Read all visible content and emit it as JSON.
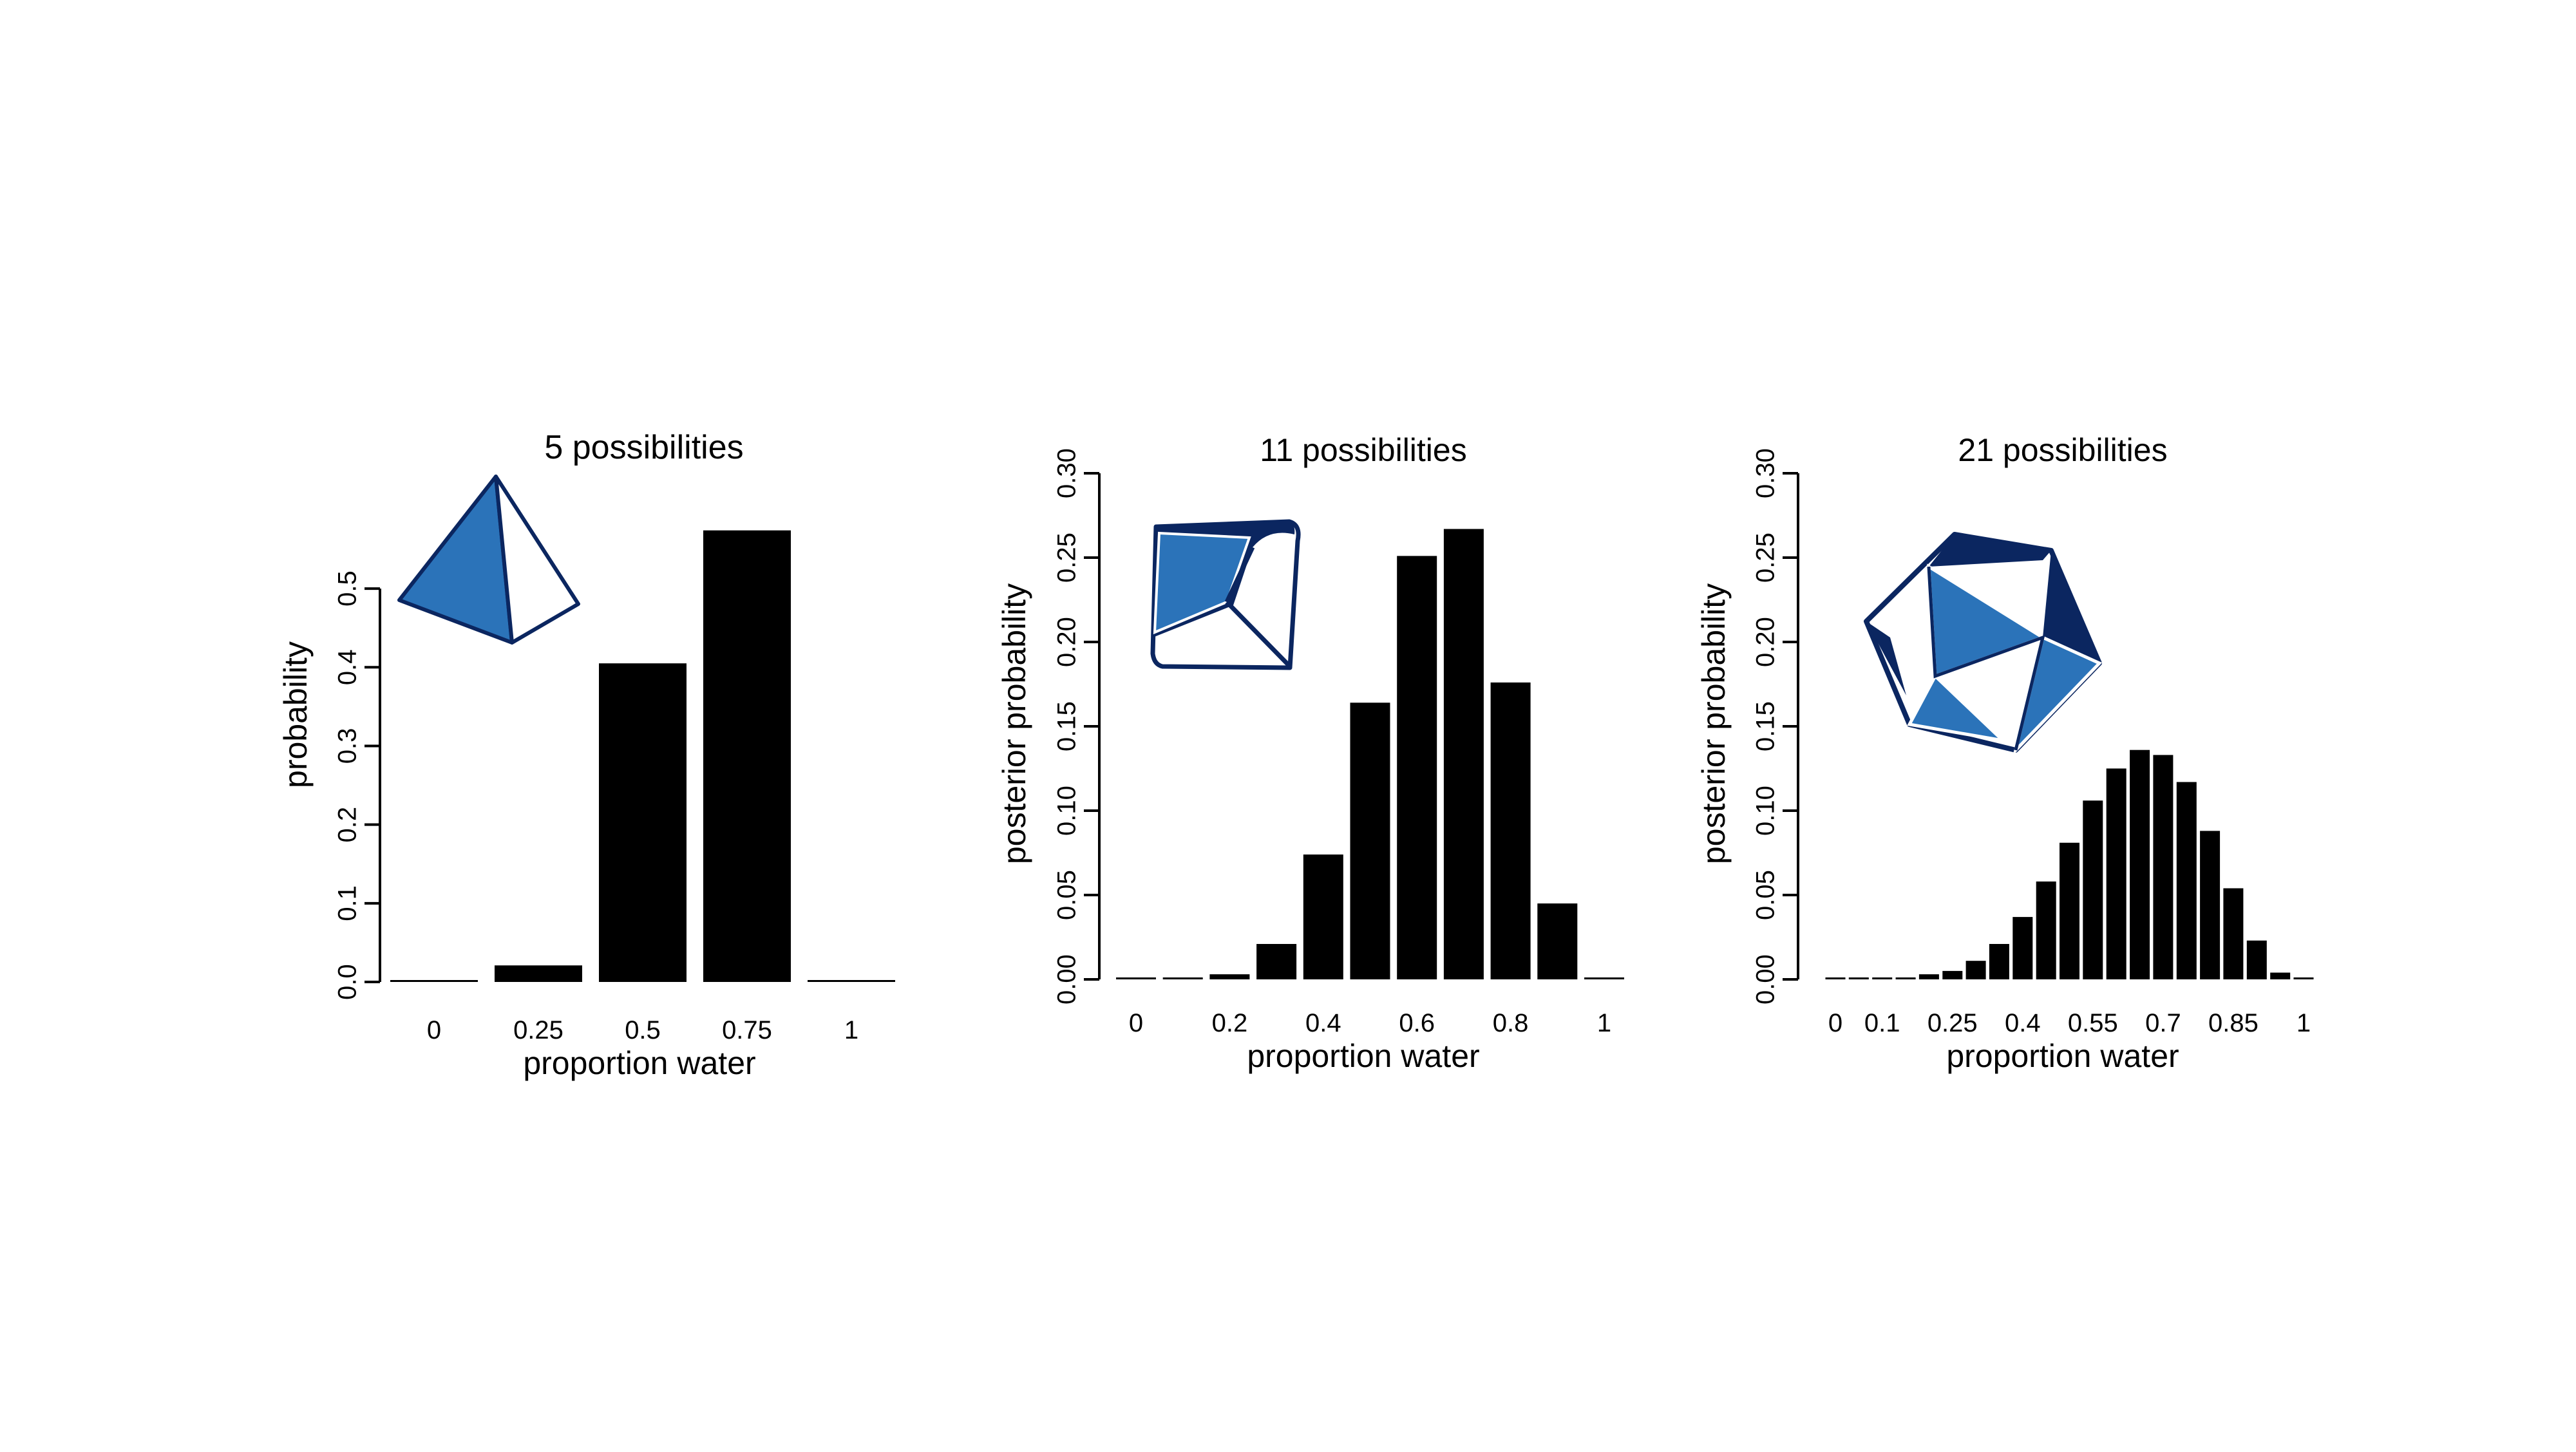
{
  "colors": {
    "bar": "#000000",
    "axis": "#000000",
    "shape_fill": "#2b73b9",
    "shape_dark": "#0b2660",
    "shape_light": "#ffffff"
  },
  "icons": [
    "tetrahedron-icon",
    "tetrahedron-10-sided-die-icon",
    "icosahedron-icon"
  ],
  "chart_data": [
    {
      "type": "bar",
      "title": "5 possibilities",
      "xlabel": "proportion water",
      "ylabel": "probability",
      "categories": [
        "0",
        "0.25",
        "0.5",
        "0.75",
        "1"
      ],
      "x_tick_labels": [
        "0",
        "0.25",
        "0.5",
        "0.75",
        "1"
      ],
      "values": [
        0,
        0.021,
        0.405,
        0.574,
        0
      ],
      "ylim": [
        0,
        0.55
      ],
      "y_ticks": [
        0,
        0.1,
        0.2,
        0.3,
        0.4,
        0.5
      ],
      "y_tick_labels": [
        "0.0",
        "0.1",
        "0.2",
        "0.3",
        "0.4",
        "0.5"
      ],
      "grid": false,
      "icon": "tetrahedron-icon"
    },
    {
      "type": "bar",
      "title": "11 possibilities",
      "xlabel": "proportion water",
      "ylabel": "posterior probability",
      "categories": [
        "0",
        "0.1",
        "0.2",
        "0.3",
        "0.4",
        "0.5",
        "0.6",
        "0.7",
        "0.8",
        "0.9",
        "1"
      ],
      "x_tick_labels": [
        "0",
        "0.2",
        "0.4",
        "0.6",
        "0.8",
        "1"
      ],
      "x_tick_positions": [
        0,
        2,
        4,
        6,
        8,
        10
      ],
      "values": [
        0,
        0,
        0.003,
        0.021,
        0.074,
        0.164,
        0.251,
        0.267,
        0.176,
        0.045,
        0
      ],
      "ylim": [
        0,
        0.3
      ],
      "y_ticks": [
        0,
        0.05,
        0.1,
        0.15,
        0.2,
        0.25,
        0.3
      ],
      "y_tick_labels": [
        "0.00",
        "0.05",
        "0.10",
        "0.15",
        "0.20",
        "0.25",
        "0.30"
      ],
      "grid": false,
      "icon": "tetrahedron-10-sided-die-icon"
    },
    {
      "type": "bar",
      "title": "21 possibilities",
      "xlabel": "proportion water",
      "ylabel": "posterior probability",
      "categories": [
        "0",
        "0.05",
        "0.1",
        "0.15",
        "0.2",
        "0.25",
        "0.3",
        "0.35",
        "0.4",
        "0.45",
        "0.5",
        "0.55",
        "0.6",
        "0.65",
        "0.7",
        "0.75",
        "0.8",
        "0.85",
        "0.9",
        "0.95",
        "1"
      ],
      "x_tick_labels": [
        "0",
        "0.1",
        "0.25",
        "0.4",
        "0.55",
        "0.7",
        "0.85",
        "1"
      ],
      "x_tick_positions": [
        0,
        2,
        5,
        8,
        11,
        14,
        17,
        20
      ],
      "values": [
        0,
        0,
        0,
        0.0005,
        0.003,
        0.005,
        0.011,
        0.021,
        0.037,
        0.058,
        0.081,
        0.106,
        0.125,
        0.136,
        0.133,
        0.117,
        0.088,
        0.054,
        0.023,
        0.004,
        0
      ],
      "ylim": [
        0,
        0.3
      ],
      "y_ticks": [
        0,
        0.05,
        0.1,
        0.15,
        0.2,
        0.25,
        0.3
      ],
      "y_tick_labels": [
        "0.00",
        "0.05",
        "0.10",
        "0.15",
        "0.20",
        "0.25",
        "0.30"
      ],
      "grid": false,
      "icon": "icosahedron-icon"
    }
  ]
}
